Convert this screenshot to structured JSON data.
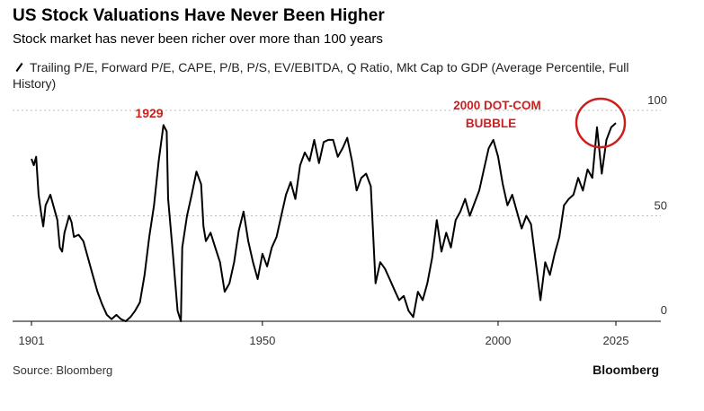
{
  "header": {
    "title": "US Stock Valuations Have Never Been Higher",
    "subtitle": "Stock market has never been richer over more than 100 years"
  },
  "legend": {
    "series_label": "Trailing P/E, Forward P/E, CAPE, P/B, P/S, EV/EBITDA, Q Ratio, Mkt Cap to GDP (Average Percentile, Full History)"
  },
  "footer": {
    "source": "Source: Bloomberg",
    "brand": "Bloomberg"
  },
  "annotations": {
    "peak_1929": "1929",
    "dotcom_line1": "2000 DOT-COM",
    "dotcom_line2": "BUBBLE"
  },
  "colors": {
    "line": "#000000",
    "annotation": "#cc1f1f",
    "grid": "#bbbbbb"
  },
  "chart_data": {
    "type": "line",
    "title": "US Stock Valuations Have Never Been Higher",
    "subtitle": "Stock market has never been richer over more than 100 years",
    "xlabel": "",
    "ylabel": "",
    "xlim": [
      1901,
      2025
    ],
    "ylim": [
      0,
      100
    ],
    "x_ticks": [
      1901,
      1950,
      2000,
      2025
    ],
    "y_ticks": [
      0,
      50,
      100
    ],
    "grid": "horizontal dotted",
    "legend_position": "top-left",
    "series": [
      {
        "name": "Trailing P/E, Forward P/E, CAPE, P/B, P/S, EV/EBITDA, Q Ratio, Mkt Cap to GDP (Average Percentile, Full History)",
        "points": [
          [
            1901,
            77
          ],
          [
            1901.5,
            74
          ],
          [
            1902,
            78
          ],
          [
            1902.5,
            60
          ],
          [
            1903,
            52
          ],
          [
            1903.5,
            45
          ],
          [
            1904,
            55
          ],
          [
            1905,
            60
          ],
          [
            1906,
            52
          ],
          [
            1906.5,
            48
          ],
          [
            1907,
            35
          ],
          [
            1907.5,
            33
          ],
          [
            1908,
            42
          ],
          [
            1909,
            50
          ],
          [
            1909.5,
            47
          ],
          [
            1910,
            40
          ],
          [
            1911,
            41
          ],
          [
            1912,
            38
          ],
          [
            1913,
            30
          ],
          [
            1914,
            22
          ],
          [
            1915,
            14
          ],
          [
            1916,
            8
          ],
          [
            1917,
            3
          ],
          [
            1918,
            1
          ],
          [
            1919,
            3
          ],
          [
            1920,
            1
          ],
          [
            1921,
            0
          ],
          [
            1922,
            2
          ],
          [
            1923,
            5
          ],
          [
            1924,
            9
          ],
          [
            1925,
            22
          ],
          [
            1926,
            40
          ],
          [
            1927,
            55
          ],
          [
            1928,
            76
          ],
          [
            1929,
            93
          ],
          [
            1929.7,
            90
          ],
          [
            1930,
            58
          ],
          [
            1931,
            32
          ],
          [
            1932,
            5
          ],
          [
            1932.7,
            0
          ],
          [
            1933,
            35
          ],
          [
            1934,
            50
          ],
          [
            1935,
            60
          ],
          [
            1936,
            71
          ],
          [
            1937,
            65
          ],
          [
            1937.5,
            45
          ],
          [
            1938,
            38
          ],
          [
            1939,
            42
          ],
          [
            1940,
            35
          ],
          [
            1941,
            28
          ],
          [
            1942,
            14
          ],
          [
            1943,
            18
          ],
          [
            1944,
            28
          ],
          [
            1945,
            43
          ],
          [
            1946,
            52
          ],
          [
            1947,
            38
          ],
          [
            1948,
            28
          ],
          [
            1949,
            20
          ],
          [
            1950,
            32
          ],
          [
            1951,
            26
          ],
          [
            1952,
            35
          ],
          [
            1953,
            40
          ],
          [
            1954,
            50
          ],
          [
            1955,
            60
          ],
          [
            1956,
            66
          ],
          [
            1957,
            58
          ],
          [
            1958,
            74
          ],
          [
            1959,
            80
          ],
          [
            1960,
            76
          ],
          [
            1961,
            86
          ],
          [
            1962,
            75
          ],
          [
            1963,
            85
          ],
          [
            1964,
            86
          ],
          [
            1965,
            86
          ],
          [
            1966,
            78
          ],
          [
            1967,
            82
          ],
          [
            1968,
            87
          ],
          [
            1969,
            76
          ],
          [
            1970,
            62
          ],
          [
            1971,
            68
          ],
          [
            1972,
            70
          ],
          [
            1973,
            64
          ],
          [
            1974,
            18
          ],
          [
            1975,
            28
          ],
          [
            1976,
            25
          ],
          [
            1977,
            20
          ],
          [
            1978,
            15
          ],
          [
            1979,
            10
          ],
          [
            1980,
            12
          ],
          [
            1981,
            5
          ],
          [
            1982,
            2
          ],
          [
            1983,
            14
          ],
          [
            1984,
            10
          ],
          [
            1985,
            18
          ],
          [
            1986,
            30
          ],
          [
            1987,
            48
          ],
          [
            1988,
            33
          ],
          [
            1989,
            42
          ],
          [
            1990,
            35
          ],
          [
            1991,
            48
          ],
          [
            1992,
            52
          ],
          [
            1993,
            58
          ],
          [
            1994,
            50
          ],
          [
            1995,
            56
          ],
          [
            1996,
            62
          ],
          [
            1997,
            72
          ],
          [
            1998,
            82
          ],
          [
            1999,
            86
          ],
          [
            2000,
            78
          ],
          [
            2001,
            65
          ],
          [
            2002,
            55
          ],
          [
            2003,
            60
          ],
          [
            2004,
            52
          ],
          [
            2005,
            44
          ],
          [
            2006,
            50
          ],
          [
            2007,
            46
          ],
          [
            2008,
            28
          ],
          [
            2009,
            10
          ],
          [
            2010,
            28
          ],
          [
            2011,
            22
          ],
          [
            2012,
            32
          ],
          [
            2013,
            40
          ],
          [
            2014,
            55
          ],
          [
            2015,
            58
          ],
          [
            2016,
            60
          ],
          [
            2017,
            68
          ],
          [
            2018,
            62
          ],
          [
            2019,
            72
          ],
          [
            2020,
            68
          ],
          [
            2021,
            92
          ],
          [
            2022,
            70
          ],
          [
            2023,
            86
          ],
          [
            2024,
            92
          ],
          [
            2025,
            94
          ]
        ]
      }
    ]
  }
}
